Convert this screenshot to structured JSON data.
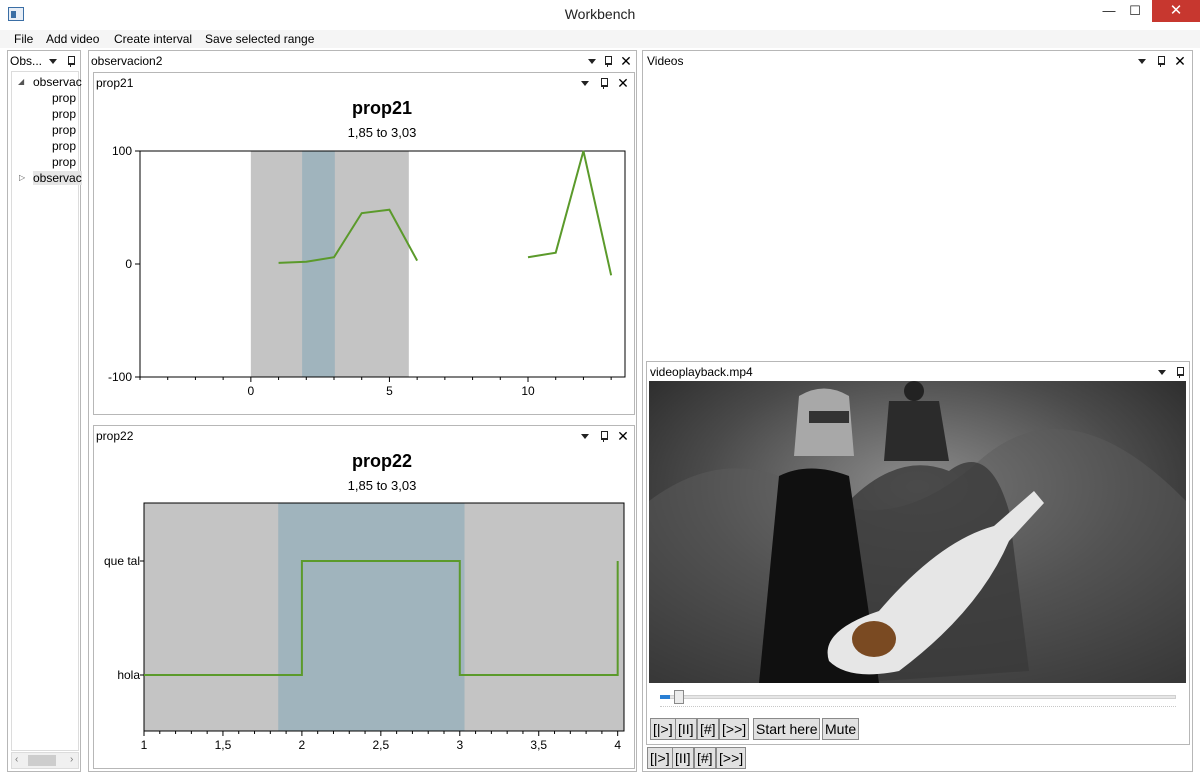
{
  "window": {
    "title": "Workbench",
    "minimize": "—",
    "maximize": "☐",
    "close": "✕"
  },
  "menu": [
    "File",
    "Add video",
    "Create interval",
    "Save selected range"
  ],
  "obs_panel": {
    "title": "Obs...",
    "tree": [
      {
        "label": "observac",
        "expanded": true
      },
      {
        "label": "prop"
      },
      {
        "label": "prop"
      },
      {
        "label": "prop"
      },
      {
        "label": "prop"
      },
      {
        "label": "prop"
      },
      {
        "label": "observac",
        "expanded": false
      }
    ]
  },
  "observation_panel": {
    "title": "observacion2"
  },
  "chart_panels": [
    {
      "header": "prop21"
    },
    {
      "header": "prop22"
    }
  ],
  "chart_data": [
    {
      "type": "line",
      "title": "prop21",
      "subtitle": "1,85 to 3,03",
      "xlim": [
        -4,
        13.5
      ],
      "ylim": [
        -100,
        100
      ],
      "xticks": [
        0,
        5,
        10
      ],
      "yticks": [
        -100,
        0,
        100
      ],
      "interval": [
        0,
        5.7
      ],
      "selection": [
        1.85,
        3.03
      ],
      "series": [
        {
          "segments": [
            {
              "x": [
                1,
                2,
                3,
                4,
                5,
                6
              ],
              "y": [
                1,
                2,
                6,
                45,
                48,
                3
              ]
            },
            {
              "x": [
                10,
                11,
                12,
                13
              ],
              "y": [
                6,
                10,
                100,
                -10
              ]
            }
          ],
          "color": "#5b9a2b"
        }
      ]
    },
    {
      "type": "line",
      "title": "prop22",
      "subtitle": "1,85 to 3,03",
      "xlim": [
        1,
        4.04
      ],
      "categories": [
        "hola",
        "que tal"
      ],
      "xticks": [
        "1",
        "1,5",
        "2",
        "2,5",
        "3",
        "3,5",
        "4"
      ],
      "interval": [
        1,
        4.04
      ],
      "selection": [
        1.85,
        3.03
      ],
      "series": [
        {
          "step": true,
          "x": [
            1,
            2,
            2,
            3,
            3,
            4,
            4
          ],
          "y": [
            0,
            0,
            1,
            1,
            0,
            0,
            1
          ],
          "color": "#5b9a2b"
        }
      ]
    }
  ],
  "videos_panel": {
    "title": "Videos"
  },
  "video": {
    "filename": "videoplayback.mp4",
    "progress": 0.02,
    "controls": [
      "[|>]",
      "[II]",
      "[#]",
      "[>>]",
      "Start here",
      "Mute"
    ]
  },
  "bottom_controls": [
    "[|>]",
    "[II]",
    "[#]",
    "[>>]"
  ]
}
